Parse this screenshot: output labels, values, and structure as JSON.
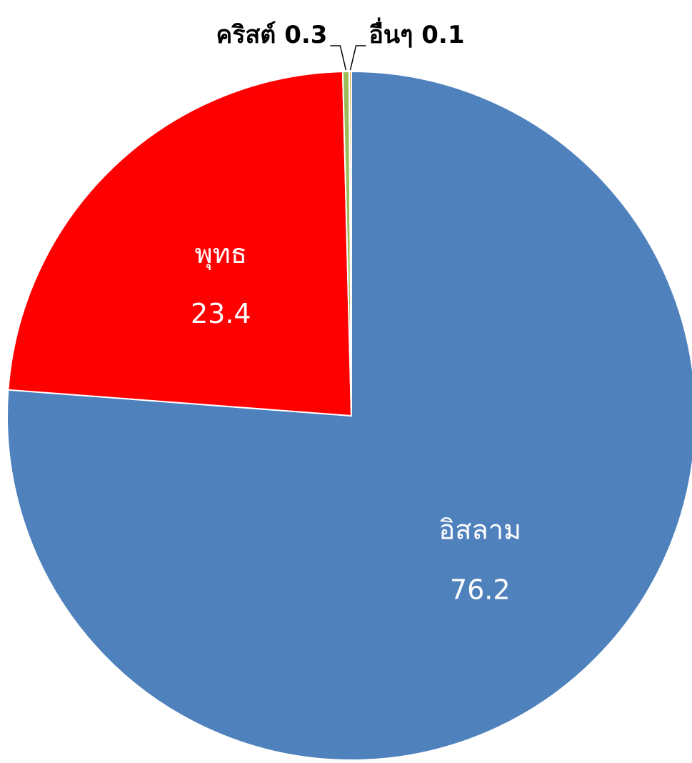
{
  "chart_data": {
    "type": "pie",
    "title": "",
    "slices": [
      {
        "label": "อิสลาม",
        "value": 76.2,
        "value_text": "76.2",
        "color": "#4F81BD",
        "label_color": "#ffffff",
        "label_style": "inside"
      },
      {
        "label": "พุทธ",
        "value": 23.4,
        "value_text": "23.4",
        "color": "#FF0000",
        "label_color": "#ffffff",
        "label_style": "inside"
      },
      {
        "label": "คริสต์",
        "value": 0.3,
        "value_text": "0.3",
        "color": "#9BBB59",
        "label_color": "#000000",
        "label_style": "outside-left"
      },
      {
        "label": "อื่นๆ",
        "value": 0.1,
        "value_text": "0.1",
        "color": "#F79646",
        "label_color": "#000000",
        "label_style": "outside-right"
      }
    ],
    "start_angle": "12 o'clock",
    "direction": "clockwise",
    "legend": "none"
  }
}
